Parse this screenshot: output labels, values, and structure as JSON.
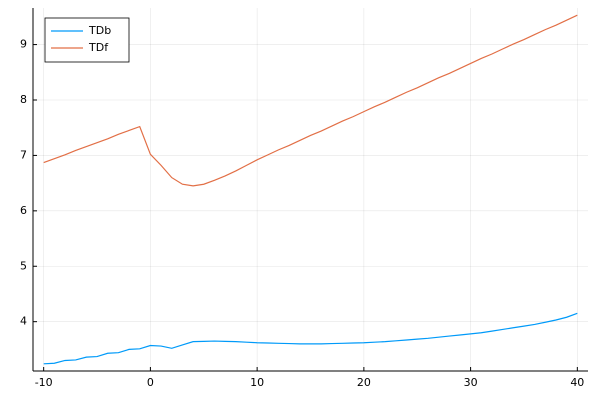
{
  "chart_data": {
    "type": "line",
    "x": [
      -10,
      -9,
      -8,
      -7,
      -6,
      -5,
      -4,
      -3,
      -2,
      -1,
      0,
      1,
      2,
      3,
      4,
      5,
      6,
      7,
      8,
      9,
      10,
      11,
      12,
      13,
      14,
      15,
      16,
      17,
      18,
      19,
      20,
      21,
      22,
      23,
      24,
      25,
      26,
      27,
      28,
      29,
      30,
      31,
      32,
      33,
      34,
      35,
      36,
      37,
      38,
      39,
      40
    ],
    "series": [
      {
        "name": "TDb",
        "color": "#009af9",
        "values": [
          3.24,
          3.25,
          3.3,
          3.31,
          3.36,
          3.37,
          3.43,
          3.44,
          3.5,
          3.51,
          3.57,
          3.56,
          3.52,
          3.58,
          3.64,
          3.645,
          3.65,
          3.645,
          3.64,
          3.63,
          3.62,
          3.615,
          3.61,
          3.605,
          3.6,
          3.6,
          3.6,
          3.605,
          3.61,
          3.615,
          3.62,
          3.63,
          3.64,
          3.655,
          3.67,
          3.685,
          3.7,
          3.72,
          3.74,
          3.76,
          3.78,
          3.8,
          3.83,
          3.86,
          3.89,
          3.92,
          3.95,
          3.99,
          4.03,
          4.08,
          4.15
        ]
      },
      {
        "name": "TDf",
        "color": "#e26f46",
        "values": [
          6.87,
          6.94,
          7.01,
          7.09,
          7.16,
          7.23,
          7.3,
          7.38,
          7.45,
          7.52,
          7.02,
          6.82,
          6.6,
          6.48,
          6.45,
          6.48,
          6.55,
          6.63,
          6.72,
          6.82,
          6.92,
          7.01,
          7.1,
          7.18,
          7.27,
          7.36,
          7.44,
          7.53,
          7.62,
          7.7,
          7.79,
          7.88,
          7.96,
          8.05,
          8.14,
          8.22,
          8.31,
          8.4,
          8.48,
          8.57,
          8.66,
          8.75,
          8.83,
          8.92,
          9.01,
          9.09,
          9.18,
          9.27,
          9.35,
          9.44,
          9.53
        ]
      }
    ],
    "xlim": [
      -11,
      41
    ],
    "xticks": [
      -10,
      0,
      10,
      20,
      30,
      40
    ],
    "ylim": [
      3.11,
      9.66
    ],
    "yticks": [
      4,
      5,
      6,
      7,
      8,
      9
    ],
    "grid": true,
    "legend": "top-left"
  }
}
